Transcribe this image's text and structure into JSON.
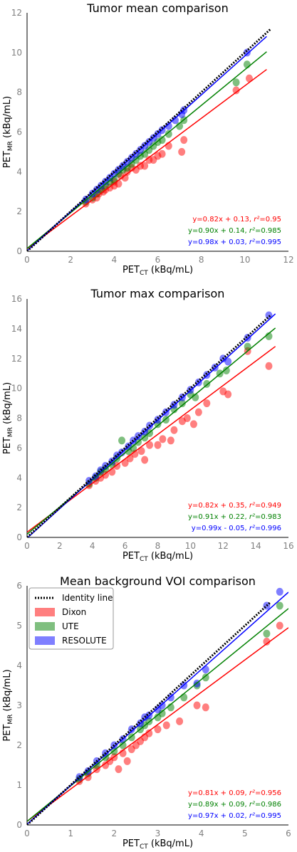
{
  "chart_data": [
    {
      "type": "scatter",
      "title": "Tumor mean comparison",
      "xlabel": "PET_CT (kBq/mL)",
      "ylabel": "PET_MR (kBq/mL)",
      "xlim": [
        0,
        12
      ],
      "ylim": [
        0,
        12
      ],
      "xticks": [
        "0",
        "2",
        "4",
        "6",
        "8",
        "10",
        "12"
      ],
      "yticks": [
        "0",
        "2",
        "4",
        "6",
        "8",
        "10",
        "12"
      ],
      "grid": false,
      "identity_line": true,
      "series": [
        {
          "name": "Dixon",
          "color": "#ff0000",
          "equation": "y=0.82x + 0.13, r²=0.95",
          "fit": {
            "slope": 0.82,
            "intercept": 0.13,
            "xmax": 11
          },
          "points": [
            [
              2.7,
              2.4
            ],
            [
              3.0,
              2.6
            ],
            [
              3.2,
              2.7
            ],
            [
              3.3,
              2.9
            ],
            [
              3.5,
              3.0
            ],
            [
              3.6,
              3.1
            ],
            [
              3.8,
              3.2
            ],
            [
              4.0,
              3.5
            ],
            [
              4.0,
              3.3
            ],
            [
              4.2,
              3.4
            ],
            [
              4.3,
              3.8
            ],
            [
              4.5,
              3.7
            ],
            [
              4.6,
              4.0
            ],
            [
              4.8,
              4.2
            ],
            [
              5.0,
              4.1
            ],
            [
              5.2,
              4.3
            ],
            [
              5.4,
              4.3
            ],
            [
              5.6,
              4.6
            ],
            [
              5.8,
              4.6
            ],
            [
              6.0,
              4.8
            ],
            [
              6.2,
              4.9
            ],
            [
              6.5,
              5.3
            ],
            [
              7.1,
              5.0
            ],
            [
              7.2,
              5.6
            ],
            [
              9.6,
              8.1
            ],
            [
              10.2,
              8.7
            ]
          ]
        },
        {
          "name": "UTE",
          "color": "#008000",
          "equation": "y=0.90x + 0.14, r²=0.985",
          "fit": {
            "slope": 0.9,
            "intercept": 0.14,
            "xmax": 11
          },
          "points": [
            [
              2.7,
              2.5
            ],
            [
              3.0,
              2.7
            ],
            [
              3.2,
              2.9
            ],
            [
              3.4,
              3.1
            ],
            [
              3.6,
              3.3
            ],
            [
              3.8,
              3.5
            ],
            [
              4.0,
              3.6
            ],
            [
              4.2,
              3.9
            ],
            [
              4.4,
              4.1
            ],
            [
              4.6,
              4.2
            ],
            [
              4.8,
              4.4
            ],
            [
              5.0,
              4.6
            ],
            [
              5.2,
              4.8
            ],
            [
              5.4,
              4.9
            ],
            [
              5.6,
              5.1
            ],
            [
              5.8,
              5.3
            ],
            [
              6.0,
              5.5
            ],
            [
              6.2,
              5.6
            ],
            [
              6.5,
              5.9
            ],
            [
              7.0,
              6.3
            ],
            [
              7.2,
              6.6
            ],
            [
              9.6,
              8.5
            ],
            [
              10.1,
              9.4
            ]
          ]
        },
        {
          "name": "RESOLUTE",
          "color": "#0000ff",
          "equation": "y=0.98x + 0.03, r²=0.995",
          "fit": {
            "slope": 0.98,
            "intercept": 0.03,
            "xmax": 11
          },
          "points": [
            [
              2.7,
              2.6
            ],
            [
              3.0,
              2.9
            ],
            [
              3.2,
              3.1
            ],
            [
              3.4,
              3.3
            ],
            [
              3.6,
              3.5
            ],
            [
              3.8,
              3.7
            ],
            [
              4.0,
              3.9
            ],
            [
              4.2,
              4.1
            ],
            [
              4.4,
              4.3
            ],
            [
              4.6,
              4.5
            ],
            [
              4.8,
              4.7
            ],
            [
              5.0,
              4.9
            ],
            [
              5.2,
              5.1
            ],
            [
              5.4,
              5.3
            ],
            [
              5.6,
              5.5
            ],
            [
              5.8,
              5.7
            ],
            [
              6.0,
              5.9
            ],
            [
              6.2,
              6.1
            ],
            [
              6.5,
              6.3
            ],
            [
              6.8,
              6.6
            ],
            [
              7.1,
              6.9
            ],
            [
              7.2,
              7.1
            ],
            [
              10.1,
              10.0
            ]
          ]
        }
      ]
    },
    {
      "type": "scatter",
      "title": "Tumor max comparison",
      "xlabel": "PET_CT (kBq/mL)",
      "ylabel": "PET_MR (kBq/mL)",
      "xlim": [
        0,
        16
      ],
      "ylim": [
        0,
        16
      ],
      "xticks": [
        "0",
        "2",
        "4",
        "6",
        "8",
        "10",
        "12",
        "14",
        "16"
      ],
      "yticks": [
        "0",
        "2",
        "4",
        "6",
        "8",
        "10",
        "12",
        "14",
        "16"
      ],
      "grid": false,
      "identity_line": true,
      "series": [
        {
          "name": "Dixon",
          "color": "#ff0000",
          "equation": "y=0.82x + 0.35, r²=0.949",
          "fit": {
            "slope": 0.82,
            "intercept": 0.35,
            "xmax": 15.2
          },
          "points": [
            [
              3.8,
              3.5
            ],
            [
              4.2,
              3.8
            ],
            [
              4.5,
              4.0
            ],
            [
              4.8,
              4.2
            ],
            [
              5.2,
              4.4
            ],
            [
              5.5,
              4.8
            ],
            [
              6.0,
              5.0
            ],
            [
              6.3,
              5.3
            ],
            [
              6.6,
              5.6
            ],
            [
              7.0,
              5.8
            ],
            [
              7.2,
              5.2
            ],
            [
              7.5,
              6.2
            ],
            [
              8.0,
              6.2
            ],
            [
              8.3,
              6.6
            ],
            [
              8.8,
              6.5
            ],
            [
              9.0,
              7.2
            ],
            [
              9.5,
              7.8
            ],
            [
              9.8,
              8.0
            ],
            [
              10.2,
              7.6
            ],
            [
              10.5,
              8.4
            ],
            [
              11.0,
              9.0
            ],
            [
              12.0,
              9.8
            ],
            [
              12.3,
              9.6
            ],
            [
              13.5,
              12.5
            ],
            [
              14.8,
              11.5
            ]
          ]
        },
        {
          "name": "UTE",
          "color": "#008000",
          "equation": "y=0.91x + 0.22, r²=0.983",
          "fit": {
            "slope": 0.91,
            "intercept": 0.22,
            "xmax": 15.2
          },
          "points": [
            [
              3.8,
              3.6
            ],
            [
              4.2,
              4.0
            ],
            [
              4.5,
              4.4
            ],
            [
              4.8,
              4.6
            ],
            [
              5.2,
              4.9
            ],
            [
              5.5,
              5.3
            ],
            [
              5.8,
              6.5
            ],
            [
              6.2,
              5.8
            ],
            [
              6.5,
              6.0
            ],
            [
              6.8,
              6.4
            ],
            [
              7.2,
              6.7
            ],
            [
              7.5,
              7.0
            ],
            [
              8.0,
              7.6
            ],
            [
              8.5,
              7.9
            ],
            [
              9.0,
              8.6
            ],
            [
              9.5,
              9.0
            ],
            [
              10.0,
              9.6
            ],
            [
              10.3,
              9.4
            ],
            [
              11.0,
              10.3
            ],
            [
              11.8,
              11.0
            ],
            [
              12.2,
              11.2
            ],
            [
              13.5,
              12.8
            ],
            [
              14.8,
              13.5
            ]
          ]
        },
        {
          "name": "RESOLUTE",
          "color": "#0000ff",
          "equation": "y=0.99x - 0.05, r²=0.996",
          "fit": {
            "slope": 0.99,
            "intercept": -0.05,
            "xmax": 15.2
          },
          "points": [
            [
              3.8,
              3.8
            ],
            [
              4.2,
              4.1
            ],
            [
              4.5,
              4.5
            ],
            [
              4.8,
              4.8
            ],
            [
              5.2,
              5.1
            ],
            [
              5.5,
              5.5
            ],
            [
              5.8,
              5.7
            ],
            [
              6.2,
              6.1
            ],
            [
              6.5,
              6.5
            ],
            [
              6.8,
              6.8
            ],
            [
              7.2,
              7.1
            ],
            [
              7.5,
              7.5
            ],
            [
              8.0,
              7.9
            ],
            [
              8.5,
              8.4
            ],
            [
              9.0,
              8.9
            ],
            [
              9.5,
              9.4
            ],
            [
              10.0,
              9.9
            ],
            [
              10.5,
              10.4
            ],
            [
              11.0,
              10.9
            ],
            [
              11.5,
              11.4
            ],
            [
              12.0,
              12.0
            ],
            [
              12.3,
              11.8
            ],
            [
              13.5,
              13.4
            ],
            [
              14.8,
              14.9
            ]
          ]
        }
      ]
    },
    {
      "type": "scatter",
      "title": "Mean background VOI comparison",
      "xlabel": "PET_CT (kBq/mL)",
      "ylabel": "PET_MR (kBq/mL)",
      "xlim": [
        0,
        6
      ],
      "ylim": [
        0,
        6
      ],
      "xticks": [
        "0",
        "1",
        "2",
        "3",
        "4",
        "5",
        "6"
      ],
      "yticks": [
        "0",
        "1",
        "2",
        "3",
        "4",
        "5",
        "6"
      ],
      "grid": false,
      "identity_line": true,
      "legend": {
        "position": "top-left",
        "entries": [
          "Identity line",
          "Dixon",
          "UTE",
          "RESOLUTE"
        ]
      },
      "series": [
        {
          "name": "Dixon",
          "color": "#ff0000",
          "equation": "y=0.81x + 0.09, r²=0.956",
          "fit": {
            "slope": 0.81,
            "intercept": 0.09,
            "xmax": 6
          },
          "points": [
            [
              1.2,
              1.1
            ],
            [
              1.4,
              1.2
            ],
            [
              1.6,
              1.4
            ],
            [
              1.8,
              1.5
            ],
            [
              1.9,
              1.6
            ],
            [
              2.0,
              1.7
            ],
            [
              2.1,
              1.4
            ],
            [
              2.2,
              1.8
            ],
            [
              2.3,
              1.6
            ],
            [
              2.4,
              1.9
            ],
            [
              2.5,
              2.0
            ],
            [
              2.6,
              2.1
            ],
            [
              2.7,
              2.2
            ],
            [
              2.8,
              2.3
            ],
            [
              3.0,
              2.4
            ],
            [
              3.2,
              2.5
            ],
            [
              3.5,
              2.6
            ],
            [
              3.9,
              3.0
            ],
            [
              4.1,
              2.95
            ],
            [
              5.5,
              4.6
            ],
            [
              5.8,
              5.0
            ]
          ]
        },
        {
          "name": "UTE",
          "color": "#008000",
          "equation": "y=0.89x + 0.09, r²=0.986",
          "fit": {
            "slope": 0.89,
            "intercept": 0.09,
            "xmax": 6
          },
          "points": [
            [
              1.2,
              1.15
            ],
            [
              1.4,
              1.3
            ],
            [
              1.6,
              1.5
            ],
            [
              1.8,
              1.7
            ],
            [
              2.0,
              1.85
            ],
            [
              2.2,
              2.0
            ],
            [
              2.4,
              2.2
            ],
            [
              2.6,
              2.4
            ],
            [
              2.7,
              2.5
            ],
            [
              2.8,
              2.6
            ],
            [
              3.0,
              2.7
            ],
            [
              3.1,
              2.8
            ],
            [
              3.3,
              2.95
            ],
            [
              3.6,
              3.2
            ],
            [
              3.9,
              3.5
            ],
            [
              4.1,
              3.7
            ],
            [
              5.5,
              4.8
            ],
            [
              5.8,
              5.5
            ]
          ]
        },
        {
          "name": "RESOLUTE",
          "color": "#0000ff",
          "equation": "y=0.97x + 0.02, r²=0.995",
          "fit": {
            "slope": 0.97,
            "intercept": 0.02,
            "xmax": 6
          },
          "points": [
            [
              1.2,
              1.2
            ],
            [
              1.4,
              1.35
            ],
            [
              1.6,
              1.6
            ],
            [
              1.8,
              1.8
            ],
            [
              2.0,
              2.0
            ],
            [
              2.2,
              2.15
            ],
            [
              2.4,
              2.4
            ],
            [
              2.6,
              2.55
            ],
            [
              2.7,
              2.7
            ],
            [
              2.8,
              2.75
            ],
            [
              3.0,
              2.9
            ],
            [
              3.1,
              3.0
            ],
            [
              3.3,
              3.2
            ],
            [
              3.6,
              3.5
            ],
            [
              3.9,
              3.55
            ],
            [
              4.1,
              3.9
            ],
            [
              5.5,
              5.5
            ],
            [
              5.8,
              5.85
            ]
          ]
        }
      ]
    }
  ]
}
